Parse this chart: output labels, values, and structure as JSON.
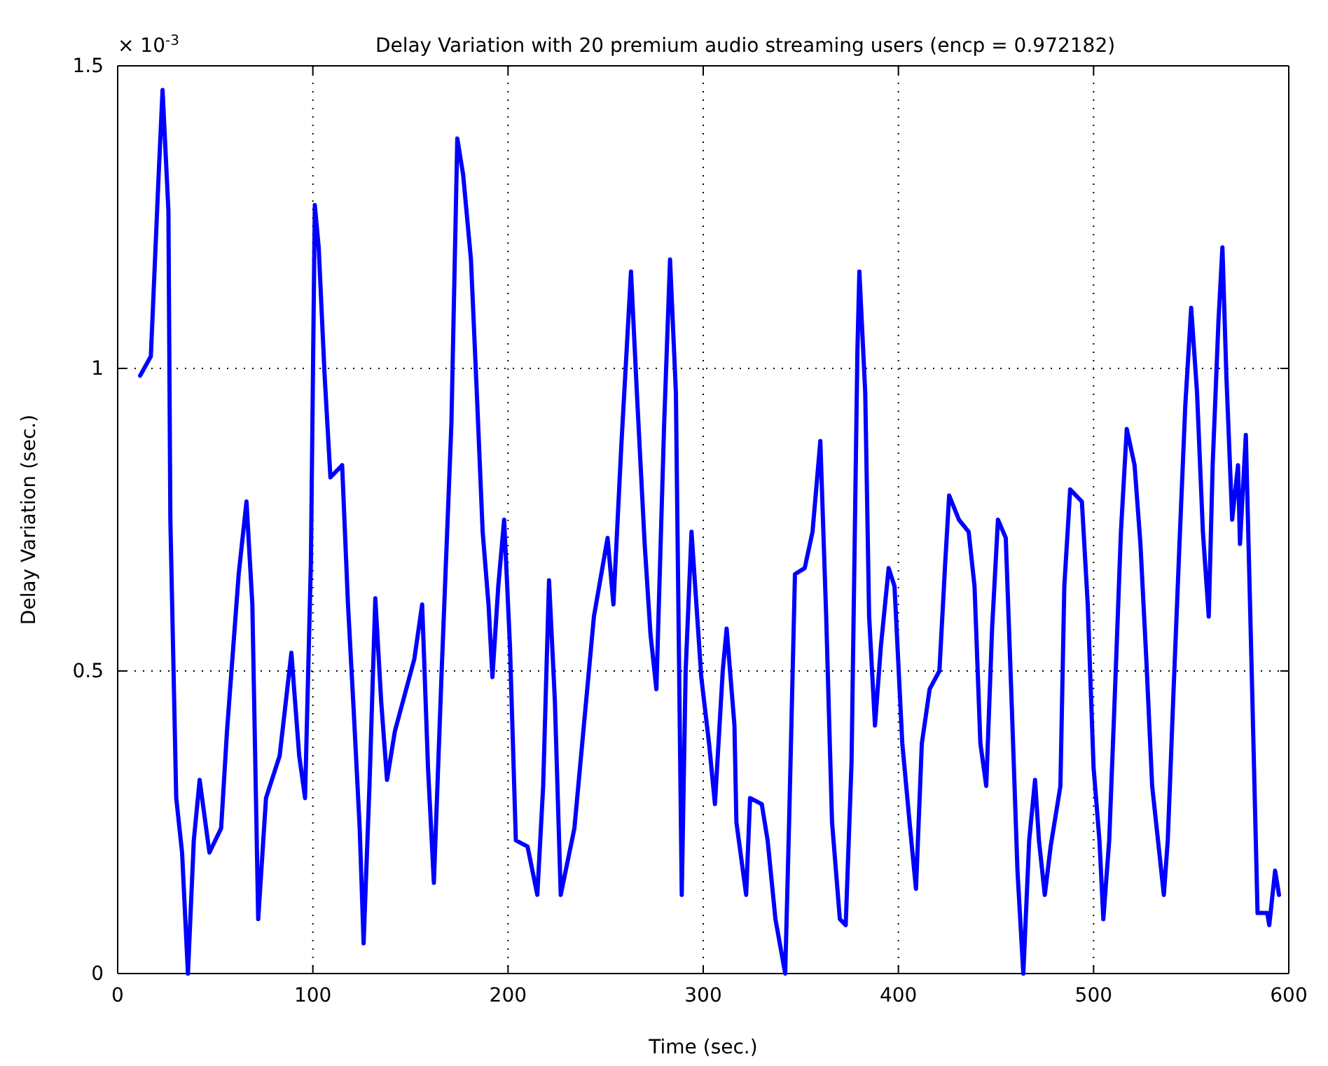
{
  "chart_data": {
    "type": "line",
    "title": "Delay Variation with 20 premium audio streaming users (encp = 0.972182)",
    "xlabel": "Time (sec.)",
    "ylabel": "Delay Variation (sec.)",
    "annotations": [
      "× 10$^{-3}$"
    ],
    "xlim": [
      0,
      600
    ],
    "xticks": [
      0,
      100,
      200,
      300,
      400,
      500,
      600
    ],
    "ylim": [
      0,
      1.5
    ],
    "yticks": [
      0,
      0.5,
      1,
      1.5
    ],
    "grid": true,
    "line_style": "solid",
    "marker": "none",
    "series": [
      {
        "color": "#0000ff",
        "x": [
          11.5,
          17,
          21,
          23,
          26,
          27,
          30,
          33,
          36,
          39,
          42,
          47,
          53,
          56,
          62,
          66,
          69,
          72,
          76,
          83,
          89,
          93,
          96,
          99,
          101,
          103,
          106,
          109,
          115,
          118,
          121,
          124,
          126,
          129,
          132,
          135,
          138,
          142,
          152,
          156,
          159,
          162,
          166,
          171,
          174,
          177,
          181,
          184,
          187,
          190,
          192,
          195,
          198,
          201,
          204,
          210,
          215,
          218,
          221,
          224,
          227,
          234,
          240,
          244,
          251,
          254,
          258,
          263,
          266,
          270,
          273,
          276,
          280,
          283,
          286,
          289,
          291,
          294,
          299,
          303,
          306,
          310,
          312,
          316,
          317,
          322,
          324,
          330,
          333,
          337,
          342,
          344,
          347,
          352,
          356,
          360,
          363,
          366,
          370,
          373,
          376,
          379,
          380,
          383,
          385,
          388,
          391,
          395,
          398,
          402,
          406,
          409,
          412,
          416,
          421,
          424,
          426,
          431,
          436,
          439,
          442,
          445,
          448,
          451,
          455,
          458,
          461,
          464,
          467,
          470,
          472,
          475,
          478,
          483,
          485,
          488,
          494,
          497,
          500,
          503,
          505,
          508,
          511,
          514,
          517,
          521,
          524,
          527,
          530,
          533,
          536,
          538,
          541,
          544,
          547,
          550,
          553,
          556,
          559,
          561,
          564,
          566,
          568,
          571,
          574,
          575,
          578,
          581,
          584,
          589,
          590,
          593,
          595
        ],
        "values": [
          0.988,
          1.02,
          1.32,
          1.46,
          1.26,
          0.75,
          0.29,
          0.2,
          0,
          0.22,
          0.32,
          0.2,
          0.24,
          0.4,
          0.66,
          0.78,
          0.61,
          0.09,
          0.29,
          0.36,
          0.53,
          0.36,
          0.29,
          0.68,
          1.27,
          1.2,
          0.99,
          0.82,
          0.84,
          0.61,
          0.43,
          0.24,
          0.05,
          0.31,
          0.62,
          0.45,
          0.32,
          0.4,
          0.52,
          0.61,
          0.34,
          0.15,
          0.5,
          0.91,
          1.38,
          1.32,
          1.18,
          0.96,
          0.73,
          0.61,
          0.49,
          0.64,
          0.75,
          0.54,
          0.22,
          0.21,
          0.13,
          0.31,
          0.65,
          0.45,
          0.13,
          0.24,
          0.45,
          0.59,
          0.72,
          0.61,
          0.87,
          1.16,
          0.96,
          0.71,
          0.56,
          0.47,
          0.91,
          1.18,
          0.96,
          0.13,
          0.5,
          0.73,
          0.49,
          0.38,
          0.28,
          0.5,
          0.57,
          0.41,
          0.25,
          0.13,
          0.29,
          0.28,
          0.22,
          0.09,
          0,
          0.25,
          0.66,
          0.67,
          0.73,
          0.88,
          0.59,
          0.25,
          0.09,
          0.08,
          0.35,
          1.03,
          1.16,
          0.96,
          0.59,
          0.41,
          0.54,
          0.67,
          0.64,
          0.38,
          0.24,
          0.14,
          0.38,
          0.47,
          0.5,
          0.68,
          0.79,
          0.75,
          0.73,
          0.64,
          0.38,
          0.31,
          0.57,
          0.75,
          0.72,
          0.45,
          0.17,
          0,
          0.22,
          0.32,
          0.22,
          0.13,
          0.21,
          0.31,
          0.64,
          0.8,
          0.78,
          0.61,
          0.34,
          0.22,
          0.09,
          0.22,
          0.47,
          0.73,
          0.9,
          0.84,
          0.71,
          0.52,
          0.31,
          0.22,
          0.13,
          0.22,
          0.47,
          0.71,
          0.94,
          1.1,
          0.96,
          0.73,
          0.59,
          0.84,
          1.08,
          1.2,
          0.99,
          0.75,
          0.84,
          0.71,
          0.89,
          0.5,
          0.1,
          0.1,
          0.08,
          0.17,
          0.13
        ]
      }
    ]
  }
}
